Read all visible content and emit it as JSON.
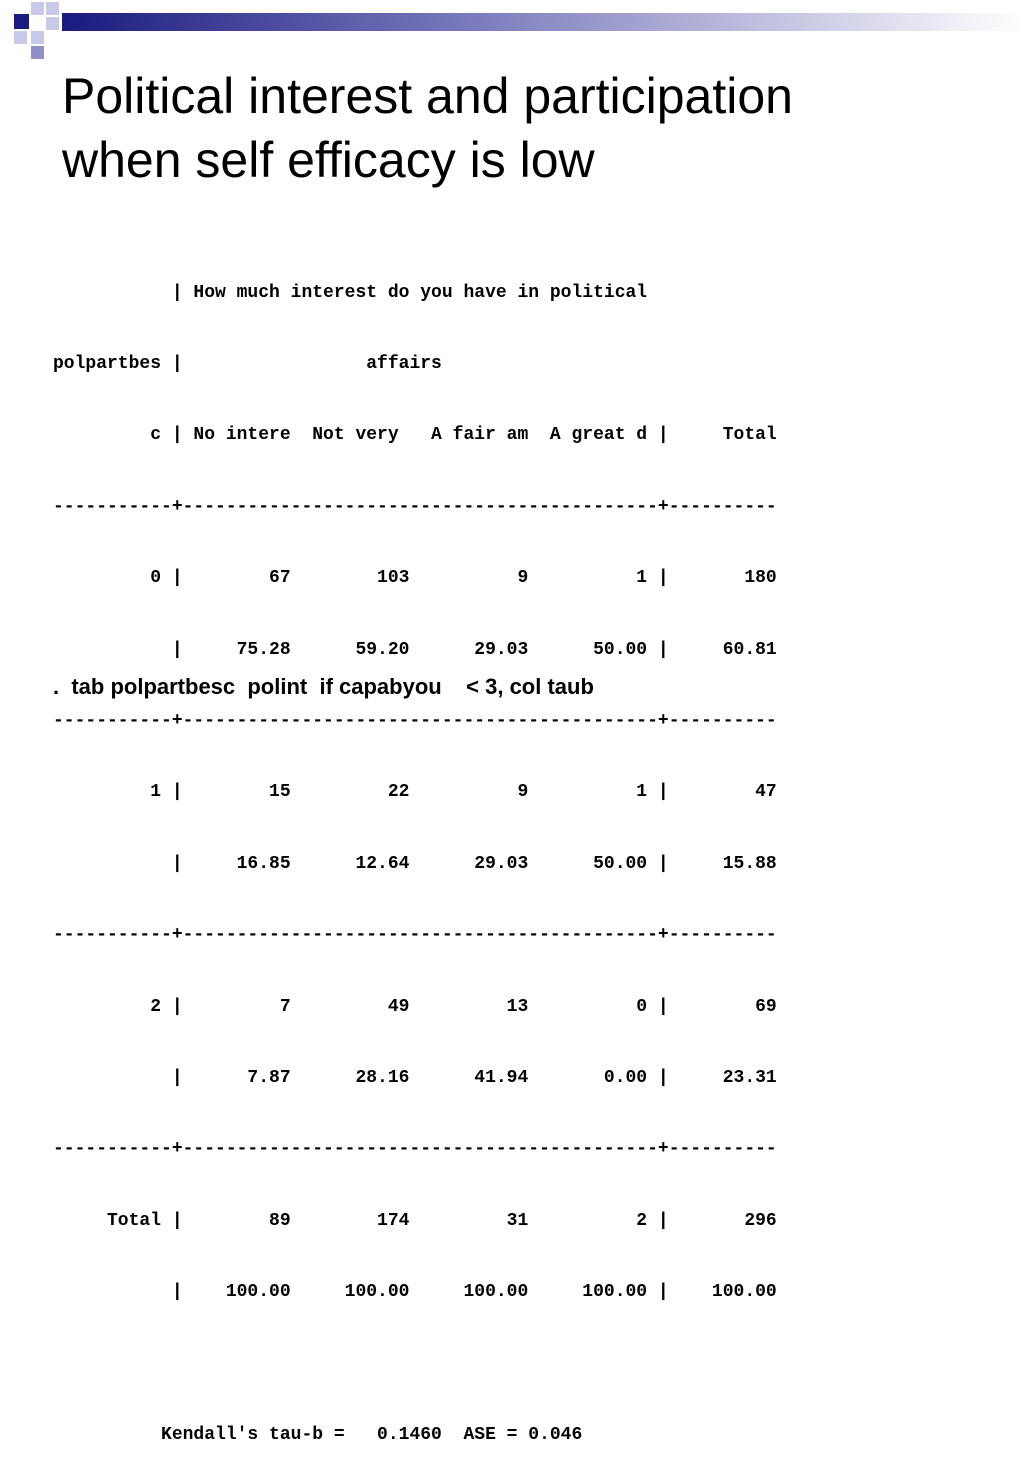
{
  "slide": {
    "title_lines": [
      "Political interest and participation",
      "when self efficacy is low"
    ],
    "colors": {
      "title": "#000000",
      "text": "#000000",
      "deco_dark": "#1a1a80",
      "deco_mid": "#8080c0",
      "deco_light": "#c8c8e8"
    }
  },
  "stata_output": {
    "lines": [
      "           | How much interest do you have in political",
      "polpartbes |                 affairs",
      "         c | No intere  Not very   A fair am  A great d |     Total",
      "-----------+--------------------------------------------+----------",
      "         0 |        67        103          9          1 |       180",
      "           |     75.28      59.20      29.03      50.00 |     60.81",
      "-----------+--------------------------------------------+----------",
      "         1 |        15         22          9          1 |        47",
      "           |     16.85      12.64      29.03      50.00 |     15.88",
      "-----------+--------------------------------------------+----------",
      "         2 |         7         49         13          0 |        69",
      "           |      7.87      28.16      41.94       0.00 |     23.31",
      "-----------+--------------------------------------------+----------",
      "     Total |        89        174         31          2 |       296",
      "           |    100.00     100.00     100.00     100.00 |    100.00",
      "",
      "          Kendall's tau-b =   0.1460  ASE = 0.046"
    ]
  },
  "command": {
    "text": ".  tab polpartbesc  polint  if capabyou    < 3, col taub"
  }
}
